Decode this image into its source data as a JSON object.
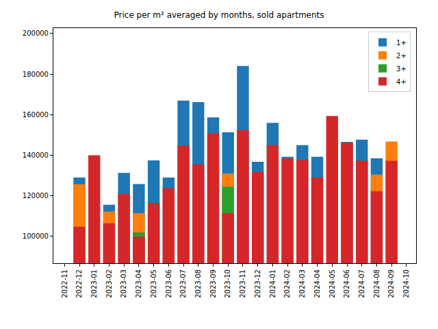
{
  "chart_data": {
    "type": "bar",
    "title": "Price per m² averaged by months, sold apartments",
    "categories": [
      "2022-11",
      "2022-12",
      "2023-01",
      "2023-02",
      "2023-03",
      "2023-04",
      "2023-05",
      "2023-06",
      "2023-07",
      "2023-08",
      "2023-09",
      "2023-10",
      "2023-11",
      "2023-12",
      "2024-01",
      "2024-02",
      "2024-03",
      "2024-04",
      "2024-05",
      "2024-06",
      "2024-07",
      "2024-08",
      "2024-09",
      "2024-10"
    ],
    "series": [
      {
        "name": "1+",
        "color": "#1f77b4",
        "values": [
          null,
          129000,
          null,
          115600,
          131300,
          125800,
          137500,
          129000,
          167000,
          166200,
          158700,
          151300,
          184000,
          136800,
          156000,
          139300,
          145000,
          139300,
          null,
          146600,
          147700,
          138500,
          null,
          null
        ]
      },
      {
        "name": "2+",
        "color": "#ff7f0e",
        "values": [
          null,
          125700,
          null,
          112200,
          null,
          111500,
          null,
          null,
          null,
          null,
          null,
          131000,
          null,
          null,
          null,
          null,
          null,
          null,
          null,
          null,
          null,
          130500,
          146800,
          null
        ]
      },
      {
        "name": "3+",
        "color": "#2ca02c",
        "values": [
          null,
          null,
          null,
          null,
          null,
          102000,
          null,
          null,
          null,
          null,
          null,
          124500,
          null,
          null,
          null,
          null,
          null,
          null,
          null,
          null,
          null,
          null,
          null,
          null
        ]
      },
      {
        "name": "4+",
        "color": "#d62728",
        "values": [
          null,
          104800,
          140000,
          106500,
          121000,
          100000,
          116500,
          123800,
          144800,
          135500,
          150800,
          111500,
          152500,
          131800,
          145000,
          138500,
          137800,
          129000,
          159400,
          146200,
          137300,
          122300,
          137300,
          null
        ]
      }
    ],
    "ylim": [
      86800,
      202700
    ],
    "yticks": [
      100000,
      120000,
      140000,
      160000,
      180000,
      200000
    ],
    "grid": false,
    "legend": "upper right",
    "stacked": false
  }
}
